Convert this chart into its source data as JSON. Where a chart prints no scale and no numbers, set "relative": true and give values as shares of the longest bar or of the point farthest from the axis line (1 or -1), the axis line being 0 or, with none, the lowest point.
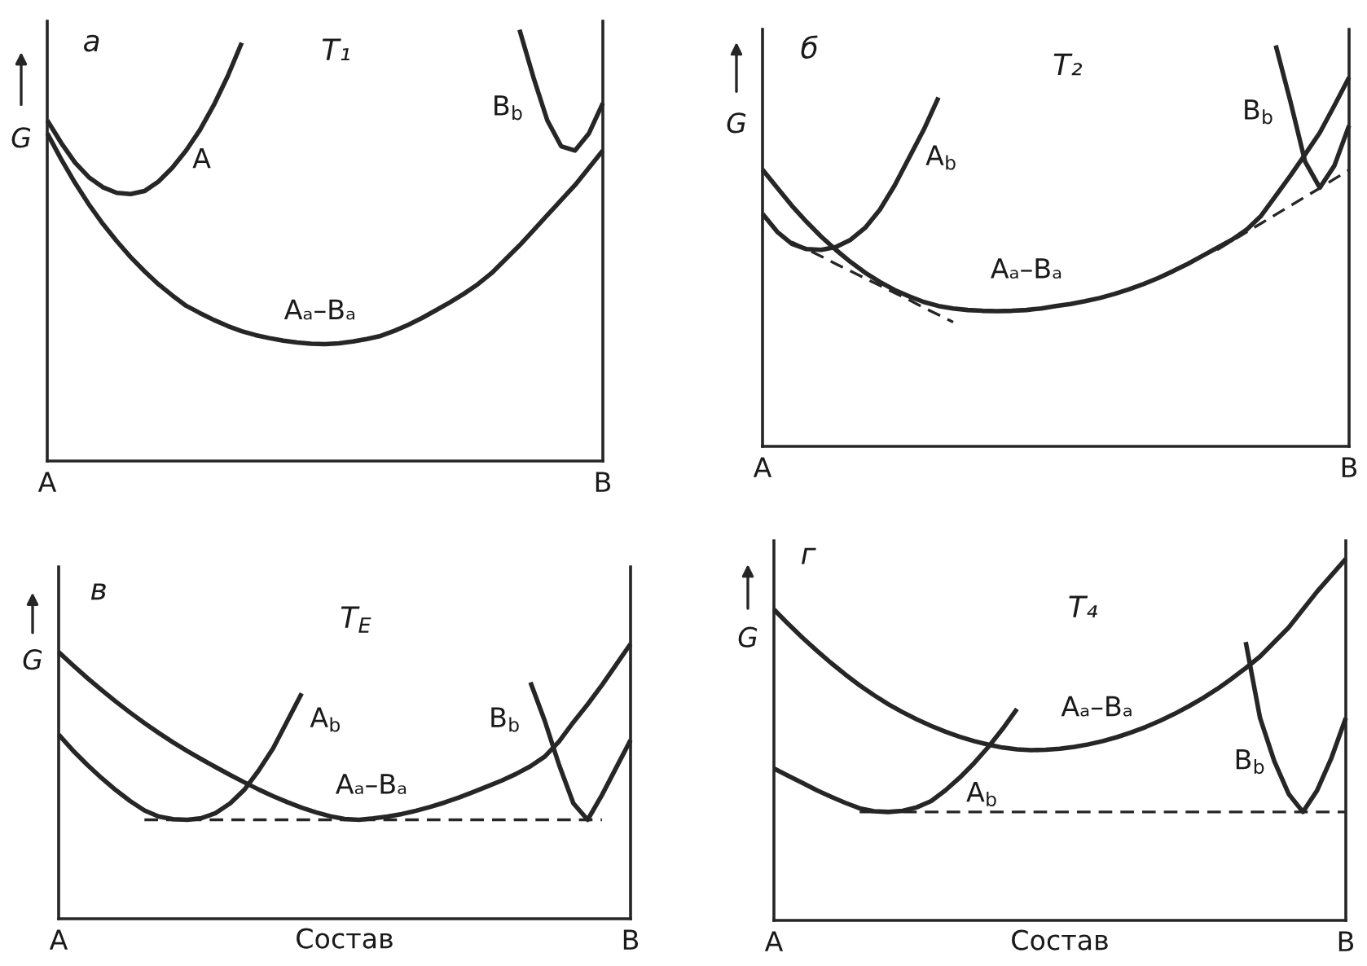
{
  "chart_data": [
    {
      "type": "line",
      "title": "T₁",
      "ylabel": "G",
      "annotations": [
        "а"
      ],
      "relative": true,
      "categories": [
        "A",
        null,
        null,
        null,
        null,
        null,
        null,
        null,
        null,
        null,
        null,
        null,
        null,
        null,
        null,
        null,
        null,
        null,
        null,
        null,
        null,
        null,
        null,
        null,
        null,
        null,
        null,
        null,
        null,
        null,
        null,
        null,
        null,
        null,
        null,
        null,
        null,
        null,
        null,
        null,
        "B"
      ],
      "series": [
        {
          "name": "A",
          "color": "#262626",
          "values": [
            0.79,
            0.738,
            0.692,
            0.658,
            0.635,
            0.622,
            0.619,
            0.626,
            0.648,
            0.68,
            0.72,
            0.768,
            0.826,
            0.893,
            0.97,
            null,
            null,
            null,
            null,
            null,
            null,
            null,
            null,
            null,
            null,
            null,
            null,
            null,
            null,
            null,
            null,
            null,
            null,
            null,
            null,
            null,
            null,
            null,
            null,
            null,
            null
          ]
        },
        {
          "name": "Aₐ–Bₐ",
          "color": "#262626",
          "values": [
            0.76,
            0.7,
            0.645,
            0.595,
            0.55,
            0.51,
            0.473,
            0.44,
            0.41,
            0.384,
            0.36,
            0.343,
            0.327,
            0.313,
            0.301,
            0.292,
            0.285,
            0.279,
            0.275,
            0.272,
            0.271,
            0.273,
            0.277,
            0.283,
            0.29,
            0.302,
            0.316,
            0.332,
            0.35,
            0.368,
            0.388,
            0.41,
            0.436,
            0.468,
            0.5,
            0.535,
            0.57,
            0.605,
            0.64,
            0.68,
            0.72
          ]
        },
        {
          "name": "B$_{b}$",
          "color": "#262626",
          "values": [
            null,
            null,
            null,
            null,
            null,
            null,
            null,
            null,
            null,
            null,
            null,
            null,
            null,
            null,
            null,
            null,
            null,
            null,
            null,
            null,
            null,
            null,
            null,
            null,
            null,
            null,
            null,
            null,
            null,
            null,
            null,
            null,
            null,
            null,
            1,
            0.89,
            0.79,
            0.73,
            0.72,
            0.76,
            0.83
          ]
        }
      ]
    },
    {
      "type": "line",
      "title": "T₂",
      "ylabel": "G",
      "annotations": [
        "б"
      ],
      "relative": true,
      "categories": [
        "A",
        null,
        null,
        null,
        null,
        null,
        null,
        null,
        null,
        null,
        null,
        null,
        null,
        null,
        null,
        null,
        null,
        null,
        null,
        null,
        null,
        null,
        null,
        null,
        null,
        null,
        null,
        null,
        null,
        null,
        null,
        null,
        null,
        null,
        null,
        null,
        null,
        null,
        null,
        null,
        "B"
      ],
      "series": [
        {
          "name": "A$_{b}$",
          "color": "#262626",
          "values": [
            0.58,
            0.535,
            0.505,
            0.492,
            0.49,
            0.497,
            0.515,
            0.545,
            0.59,
            0.65,
            0.72,
            0.79,
            0.87,
            null,
            null,
            null,
            null,
            null,
            null,
            null,
            null,
            null,
            null,
            null,
            null,
            null,
            null,
            null,
            null,
            null,
            null,
            null,
            null,
            null,
            null,
            null,
            null,
            null,
            null,
            null,
            null
          ]
        },
        {
          "name": "Aₐ–Bₐ",
          "color": "#262626",
          "values": [
            0.69,
            0.645,
            0.6,
            0.56,
            0.523,
            0.49,
            0.46,
            0.433,
            0.41,
            0.39,
            0.374,
            0.36,
            0.35,
            0.344,
            0.34,
            0.338,
            0.337,
            0.338,
            0.34,
            0.344,
            0.35,
            0.355,
            0.362,
            0.37,
            0.38,
            0.392,
            0.405,
            0.42,
            0.437,
            0.455,
            0.475,
            0.495,
            0.515,
            0.54,
            0.575,
            0.625,
            0.675,
            0.728,
            0.782,
            0.85,
            0.92
          ]
        },
        {
          "name": "B$_{b}$",
          "color": "#262626",
          "values": [
            null,
            null,
            null,
            null,
            null,
            null,
            null,
            null,
            null,
            null,
            null,
            null,
            null,
            null,
            null,
            null,
            null,
            null,
            null,
            null,
            null,
            null,
            null,
            null,
            null,
            null,
            null,
            null,
            null,
            null,
            null,
            null,
            null,
            null,
            null,
            1,
            0.86,
            0.71,
            0.645,
            0.7,
            0.8
          ]
        },
        {
          "color": "#262626",
          "line_style": "dashed",
          "values": [
            null,
            null,
            0.51,
            0.492,
            0.474,
            0.455,
            0.437,
            0.419,
            0.401,
            0.383,
            0.365,
            0.346,
            0.328,
            0.31,
            null,
            null,
            null,
            null,
            null,
            null,
            null,
            null,
            null,
            null,
            null,
            null,
            null,
            null,
            null,
            null,
            null,
            null,
            null,
            null,
            null,
            null,
            null,
            null,
            null,
            null,
            null
          ]
        },
        {
          "color": "#262626",
          "line_style": "dashed",
          "values": [
            null,
            null,
            null,
            null,
            null,
            null,
            null,
            null,
            null,
            null,
            null,
            null,
            null,
            null,
            null,
            null,
            null,
            null,
            null,
            null,
            null,
            null,
            null,
            null,
            null,
            null,
            null,
            null,
            null,
            null,
            null,
            0.49,
            0.512,
            0.534,
            0.556,
            0.578,
            0.6,
            0.622,
            0.644,
            0.667,
            0.689
          ]
        }
      ]
    },
    {
      "type": "line",
      "title": "T$_{E}$",
      "xlabel": "Состав",
      "ylabel": "G",
      "annotations": [
        "в"
      ],
      "relative": true,
      "categories": [
        "A",
        null,
        null,
        null,
        null,
        null,
        null,
        null,
        null,
        null,
        null,
        null,
        null,
        null,
        null,
        null,
        null,
        null,
        null,
        null,
        null,
        null,
        null,
        null,
        null,
        null,
        null,
        null,
        null,
        null,
        null,
        null,
        null,
        null,
        null,
        null,
        null,
        null,
        null,
        null,
        "B"
      ],
      "series": [
        {
          "name": "A$_{b}$",
          "color": "#262626",
          "values": [
            0.67,
            0.612,
            0.56,
            0.512,
            0.468,
            0.428,
            0.394,
            0.372,
            0.362,
            0.36,
            0.366,
            0.385,
            0.42,
            0.47,
            0.54,
            0.62,
            0.72,
            0.82,
            null,
            null,
            null,
            null,
            null,
            null,
            null,
            null,
            null,
            null,
            null,
            null,
            null,
            null,
            null,
            null,
            null,
            null,
            null,
            null,
            null,
            null,
            null
          ]
        },
        {
          "name": "Aₐ–Bₐ",
          "color": "#262626",
          "values": [
            0.97,
            0.922,
            0.876,
            0.832,
            0.79,
            0.75,
            0.712,
            0.676,
            0.642,
            0.61,
            0.58,
            0.551,
            0.523,
            0.496,
            0.47,
            0.446,
            0.424,
            0.404,
            0.387,
            0.373,
            0.363,
            0.36,
            0.365,
            0.372,
            0.381,
            0.393,
            0.407,
            0.423,
            0.441,
            0.461,
            0.482,
            0.503,
            0.527,
            0.555,
            0.59,
            0.645,
            0.715,
            0.78,
            0.85,
            0.925,
            1
          ]
        },
        {
          "name": "B$_{b}$",
          "color": "#262626",
          "values": [
            null,
            null,
            null,
            null,
            null,
            null,
            null,
            null,
            null,
            null,
            null,
            null,
            null,
            null,
            null,
            null,
            null,
            null,
            null,
            null,
            null,
            null,
            null,
            null,
            null,
            null,
            null,
            null,
            null,
            null,
            null,
            null,
            null,
            0.86,
            0.72,
            0.56,
            0.42,
            0.36,
            0.45,
            0.55,
            0.65
          ]
        },
        {
          "color": "#262626",
          "line_style": "dashed",
          "values": [
            null,
            null,
            null,
            null,
            null,
            null,
            0.36,
            0.36,
            0.36,
            0.36,
            0.36,
            0.36,
            0.36,
            0.36,
            0.36,
            0.36,
            0.36,
            0.36,
            0.36,
            0.36,
            0.36,
            0.36,
            0.36,
            0.36,
            0.36,
            0.36,
            0.36,
            0.36,
            0.36,
            0.36,
            0.36,
            0.36,
            0.36,
            0.36,
            0.36,
            0.36,
            0.36,
            0.36,
            0.36,
            null,
            null
          ]
        }
      ]
    },
    {
      "type": "line",
      "title": "T₄",
      "xlabel": "Состав",
      "ylabel": "G",
      "annotations": [
        "г"
      ],
      "relative": true,
      "categories": [
        "A",
        null,
        null,
        null,
        null,
        null,
        null,
        null,
        null,
        null,
        null,
        null,
        null,
        null,
        null,
        null,
        null,
        null,
        null,
        null,
        null,
        null,
        null,
        null,
        null,
        null,
        null,
        null,
        null,
        null,
        null,
        null,
        null,
        null,
        null,
        null,
        null,
        null,
        null,
        null,
        "B"
      ],
      "series": [
        {
          "name": "A$_{b}$",
          "color": "#262626",
          "values": [
            0.42,
            0.4,
            0.38,
            0.36,
            0.342,
            0.325,
            0.31,
            0.302,
            0.3,
            0.303,
            0.313,
            0.33,
            0.36,
            0.395,
            0.435,
            0.48,
            0.53,
            0.585,
            null,
            null,
            null,
            null,
            null,
            null,
            null,
            null,
            null,
            null,
            null,
            null,
            null,
            null,
            null,
            null,
            null,
            null,
            null,
            null,
            null,
            null,
            null
          ]
        },
        {
          "name": "Aₐ–Bₐ",
          "color": "#262626",
          "values": [
            0.86,
            0.82,
            0.782,
            0.746,
            0.712,
            0.68,
            0.65,
            0.623,
            0.598,
            0.576,
            0.556,
            0.538,
            0.522,
            0.508,
            0.496,
            0.486,
            0.478,
            0.473,
            0.471,
            0.472,
            0.475,
            0.48,
            0.487,
            0.496,
            0.507,
            0.52,
            0.535,
            0.552,
            0.571,
            0.592,
            0.615,
            0.64,
            0.668,
            0.698,
            0.73,
            0.77,
            0.81,
            0.86,
            0.91,
            0.955,
            1
          ]
        },
        {
          "name": "B$_{b}$",
          "color": "#262626",
          "values": [
            null,
            null,
            null,
            null,
            null,
            null,
            null,
            null,
            null,
            null,
            null,
            null,
            null,
            null,
            null,
            null,
            null,
            null,
            null,
            null,
            null,
            null,
            null,
            null,
            null,
            null,
            null,
            null,
            null,
            null,
            null,
            null,
            null,
            0.77,
            0.56,
            0.44,
            0.35,
            0.3,
            0.36,
            0.45,
            0.56
          ]
        },
        {
          "color": "#262626",
          "line_style": "dashed",
          "values": [
            null,
            null,
            null,
            null,
            null,
            null,
            0.3,
            0.3,
            0.3,
            0.3,
            0.3,
            0.3,
            0.3,
            0.3,
            0.3,
            0.3,
            0.3,
            0.3,
            0.3,
            0.3,
            0.3,
            0.3,
            0.3,
            0.3,
            0.3,
            0.3,
            0.3,
            0.3,
            0.3,
            0.3,
            0.3,
            0.3,
            0.3,
            0.3,
            0.3,
            0.3,
            0.3,
            0.3,
            0.3,
            0.3,
            0.3
          ]
        }
      ]
    }
  ]
}
